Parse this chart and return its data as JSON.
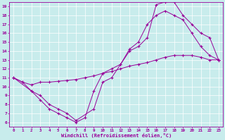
{
  "xlabel": "Windchill (Refroidissement éolien,°C)",
  "bg_color": "#c8ecec",
  "line_color": "#990099",
  "grid_color": "#ffffff",
  "xlim": [
    -0.5,
    23.5
  ],
  "ylim": [
    5.5,
    19.5
  ],
  "xticks": [
    0,
    1,
    2,
    3,
    4,
    5,
    6,
    7,
    8,
    9,
    10,
    11,
    12,
    13,
    14,
    15,
    16,
    17,
    18,
    19,
    20,
    21,
    22,
    23
  ],
  "yticks": [
    6,
    7,
    8,
    9,
    10,
    11,
    12,
    13,
    14,
    15,
    16,
    17,
    18,
    19
  ],
  "line1_x": [
    0,
    1,
    2,
    3,
    4,
    5,
    6,
    7,
    8,
    9,
    10,
    11,
    12,
    13,
    14,
    15,
    16,
    17,
    18,
    19,
    20,
    21,
    22,
    23
  ],
  "line1_y": [
    11,
    10.5,
    9.5,
    8.5,
    7.5,
    7.0,
    6.5,
    6.0,
    6.5,
    9.5,
    11.5,
    12.0,
    12.5,
    14.2,
    15.0,
    17.0,
    18.0,
    18.5,
    18.0,
    17.5,
    16.0,
    14.5,
    13.5,
    13.0
  ],
  "line2_x": [
    0,
    2,
    3,
    4,
    5,
    6,
    7,
    9,
    10,
    11,
    12,
    13,
    14,
    15,
    16,
    17,
    18,
    19,
    20,
    21,
    22,
    23
  ],
  "line2_y": [
    11,
    9.5,
    9.0,
    8.0,
    7.5,
    7.0,
    6.2,
    7.5,
    10.5,
    11.0,
    12.5,
    14.0,
    14.5,
    15.5,
    19.2,
    19.5,
    19.5,
    18.0,
    17.0,
    16.0,
    15.5,
    13.0
  ],
  "line3_x": [
    0,
    1,
    2,
    3,
    4,
    5,
    6,
    7,
    8,
    9,
    10,
    11,
    12,
    13,
    14,
    15,
    16,
    17,
    18,
    19,
    20,
    21,
    22,
    23
  ],
  "line3_y": [
    11,
    10.5,
    10.2,
    10.5,
    10.5,
    10.6,
    10.7,
    10.8,
    11.0,
    11.2,
    11.5,
    11.7,
    12.0,
    12.3,
    12.5,
    12.7,
    13.0,
    13.3,
    13.5,
    13.5,
    13.5,
    13.3,
    13.0,
    13.0
  ]
}
